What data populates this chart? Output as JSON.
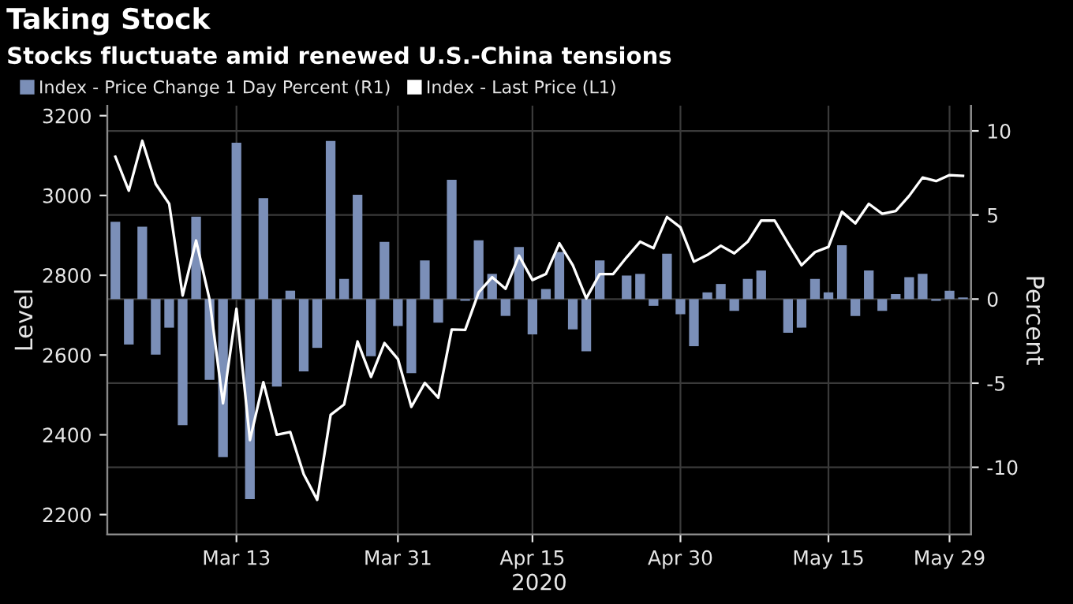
{
  "chart_data": {
    "type": "bar",
    "title": "Taking Stock",
    "subtitle": "Stocks fluctuate amid renewed U.S.-China tensions",
    "xlabel": "2020",
    "ylabel": "Level",
    "y2label": "Percent",
    "categories": [
      null,
      null,
      null,
      null,
      null,
      null,
      null,
      null,
      null,
      "Mar 13",
      null,
      null,
      null,
      null,
      null,
      null,
      null,
      null,
      null,
      null,
      null,
      "Mar 31",
      null,
      null,
      null,
      null,
      null,
      null,
      null,
      null,
      null,
      "Apr 15",
      null,
      null,
      null,
      null,
      null,
      null,
      null,
      null,
      null,
      null,
      "Apr 30",
      null,
      null,
      null,
      null,
      null,
      null,
      null,
      null,
      null,
      null,
      "May 15",
      null,
      null,
      null,
      null,
      null,
      null,
      null,
      null,
      "May 29",
      null
    ],
    "series": [
      {
        "name": "Index - Price Change 1 Day Percent (R1)",
        "axis": "y2",
        "color": "#7b8fb8",
        "values": [
          4.6,
          -2.7,
          4.3,
          -3.3,
          -1.7,
          -7.5,
          4.9,
          -4.8,
          -9.4,
          9.3,
          -11.9,
          6.0,
          -5.2,
          0.5,
          -4.3,
          -2.9,
          9.4,
          1.2,
          6.2,
          -3.4,
          3.4,
          -1.6,
          -4.4,
          2.3,
          -1.4,
          7.1,
          -0.1,
          3.5,
          1.5,
          -1.0,
          3.1,
          -2.1,
          0.6,
          2.8,
          -1.8,
          -3.1,
          2.3,
          0.0,
          1.4,
          1.5,
          -0.4,
          2.7,
          -0.9,
          -2.8,
          0.4,
          0.9,
          -0.7,
          1.2,
          1.7,
          0.0,
          -2.0,
          -1.7,
          1.2,
          0.4,
          3.2,
          -1.0,
          1.7,
          -0.7,
          0.3,
          1.3,
          1.5,
          -0.1,
          0.5,
          0.1
        ]
      },
      {
        "name": "Index - Last Price (L1)",
        "type": "line",
        "axis": "y",
        "color": "#ffffff",
        "values": [
          3097,
          3012,
          3137,
          3029,
          2979,
          2749,
          2887,
          2739,
          2479,
          2716,
          2387,
          2532,
          2400,
          2407,
          2301,
          2237,
          2450,
          2476,
          2634,
          2545,
          2630,
          2590,
          2470,
          2530,
          2493,
          2664,
          2663,
          2757,
          2795,
          2766,
          2849,
          2788,
          2803,
          2880,
          2825,
          2742,
          2803,
          2803,
          2845,
          2884,
          2868,
          2946,
          2920,
          2834,
          2851,
          2874,
          2855,
          2884,
          2937,
          2937,
          2880,
          2825,
          2858,
          2871,
          2959,
          2930,
          2979,
          2954,
          2961,
          2999,
          3045,
          3036,
          3051,
          3049
        ]
      }
    ],
    "ylim": [
      2150,
      3225
    ],
    "yticks": [
      2200,
      2400,
      2600,
      2800,
      3000,
      3200
    ],
    "y2lim": [
      -14,
      11.5
    ],
    "y2ticks": [
      -10,
      -5,
      0,
      5,
      10
    ],
    "grid": true,
    "legend": "top left",
    "marker": "none",
    "line_style": "solid"
  }
}
